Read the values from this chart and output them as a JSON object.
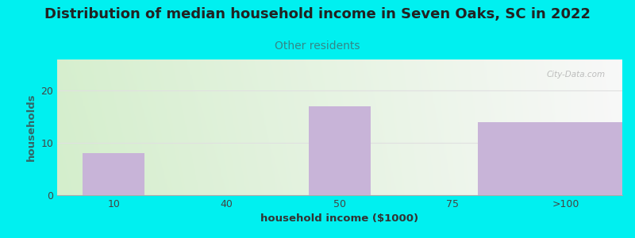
{
  "title": "Distribution of median household income in Seven Oaks, SC in 2022",
  "subtitle": "Other residents",
  "xlabel": "household income ($1000)",
  "ylabel": "households",
  "categories": [
    "10",
    "40",
    "50",
    "75",
    ">100"
  ],
  "values": [
    8,
    0,
    17,
    0,
    14
  ],
  "bar_color": "#c8b4d8",
  "background_color": "#00f0f0",
  "ylim": [
    0,
    26
  ],
  "yticks": [
    0,
    10,
    20
  ],
  "title_fontsize": 13,
  "subtitle_fontsize": 10,
  "axis_label_fontsize": 9.5,
  "tick_fontsize": 9,
  "watermark": "City-Data.com",
  "bar_positions": [
    0,
    1,
    2,
    3,
    4
  ],
  "bar_widths": [
    0.55,
    0.55,
    0.55,
    0.55,
    1.55
  ],
  "ylabel_color": "#336666",
  "subtitle_color": "#338888",
  "grid_color": "#e0e0e0"
}
